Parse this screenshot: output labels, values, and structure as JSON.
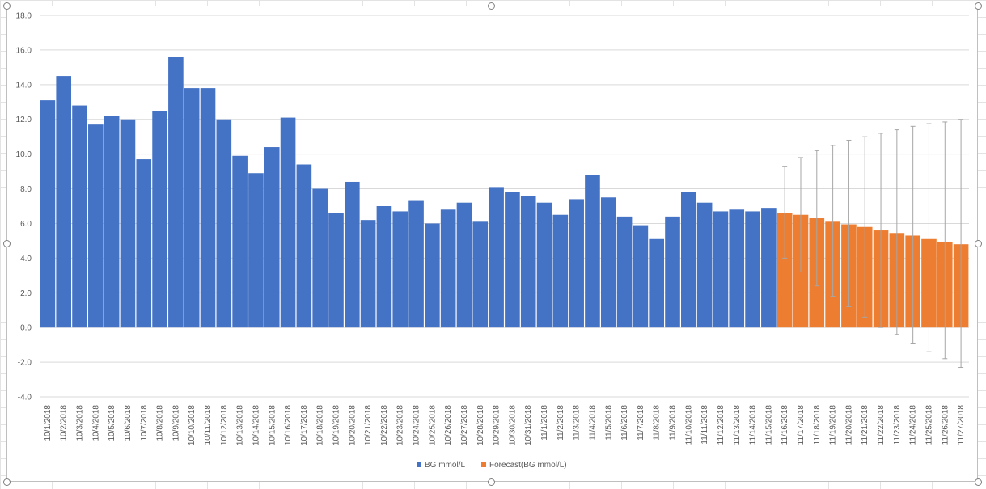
{
  "chart_data": {
    "type": "bar",
    "title": "",
    "xlabel": "",
    "ylabel": "",
    "ylim": [
      -4,
      18
    ],
    "ytick_step": 2,
    "ytick_labels": [
      "-4.0",
      "-2.0",
      "0.0",
      "2.0",
      "4.0",
      "6.0",
      "8.0",
      "10.0",
      "12.0",
      "14.0",
      "16.0",
      "18.0"
    ],
    "grid": true,
    "legend_position": "bottom",
    "categories": [
      "10/1/2018",
      "10/2/2018",
      "10/3/2018",
      "10/4/2018",
      "10/5/2018",
      "10/6/2018",
      "10/7/2018",
      "10/8/2018",
      "10/9/2018",
      "10/10/2018",
      "10/11/2018",
      "10/12/2018",
      "10/13/2018",
      "10/14/2018",
      "10/15/2018",
      "10/16/2018",
      "10/17/2018",
      "10/18/2018",
      "10/19/2018",
      "10/20/2018",
      "10/21/2018",
      "10/22/2018",
      "10/23/2018",
      "10/24/2018",
      "10/25/2018",
      "10/26/2018",
      "10/27/2018",
      "10/28/2018",
      "10/29/2018",
      "10/30/2018",
      "10/31/2018",
      "11/1/2018",
      "11/2/2018",
      "11/3/2018",
      "11/4/2018",
      "11/5/2018",
      "11/6/2018",
      "11/7/2018",
      "11/8/2018",
      "11/9/2018",
      "11/10/2018",
      "11/11/2018",
      "11/12/2018",
      "11/13/2018",
      "11/14/2018",
      "11/15/2018",
      "11/16/2018",
      "11/17/2018",
      "11/18/2018",
      "11/19/2018",
      "11/20/2018",
      "11/21/2018",
      "11/22/2018",
      "11/23/2018",
      "11/24/2018",
      "11/25/2018",
      "11/26/2018",
      "11/27/2018"
    ],
    "series": [
      {
        "name": "BG mmol/L",
        "color": "#4472c4",
        "values": [
          13.1,
          14.5,
          12.8,
          11.7,
          12.2,
          12.0,
          9.7,
          12.5,
          15.6,
          13.8,
          13.8,
          12.0,
          9.9,
          8.9,
          10.4,
          12.1,
          9.4,
          8.0,
          6.6,
          8.4,
          6.2,
          7.0,
          6.7,
          7.3,
          6.0,
          6.8,
          7.2,
          6.1,
          8.1,
          7.8,
          7.6,
          7.2,
          6.5,
          7.4,
          8.8,
          7.5,
          6.4,
          5.9,
          5.1,
          6.4,
          7.8,
          7.2,
          6.7,
          6.8,
          6.7,
          6.9,
          null,
          null,
          null,
          null,
          null,
          null,
          null,
          null,
          null,
          null,
          null,
          null
        ]
      },
      {
        "name": "Forecast(BG mmol/L)",
        "color": "#ed7d31",
        "values": [
          null,
          null,
          null,
          null,
          null,
          null,
          null,
          null,
          null,
          null,
          null,
          null,
          null,
          null,
          null,
          null,
          null,
          null,
          null,
          null,
          null,
          null,
          null,
          null,
          null,
          null,
          null,
          null,
          null,
          null,
          null,
          null,
          null,
          null,
          null,
          null,
          null,
          null,
          null,
          null,
          null,
          null,
          null,
          null,
          null,
          null,
          6.6,
          6.5,
          6.3,
          6.1,
          5.95,
          5.8,
          5.6,
          5.45,
          5.3,
          5.1,
          4.95,
          4.8
        ],
        "error_upper": [
          null,
          null,
          null,
          null,
          null,
          null,
          null,
          null,
          null,
          null,
          null,
          null,
          null,
          null,
          null,
          null,
          null,
          null,
          null,
          null,
          null,
          null,
          null,
          null,
          null,
          null,
          null,
          null,
          null,
          null,
          null,
          null,
          null,
          null,
          null,
          null,
          null,
          null,
          null,
          null,
          null,
          null,
          null,
          null,
          null,
          null,
          9.3,
          9.8,
          10.2,
          10.5,
          10.8,
          11.0,
          11.2,
          11.4,
          11.6,
          11.75,
          11.85,
          12.0
        ],
        "error_lower": [
          null,
          null,
          null,
          null,
          null,
          null,
          null,
          null,
          null,
          null,
          null,
          null,
          null,
          null,
          null,
          null,
          null,
          null,
          null,
          null,
          null,
          null,
          null,
          null,
          null,
          null,
          null,
          null,
          null,
          null,
          null,
          null,
          null,
          null,
          null,
          null,
          null,
          null,
          null,
          null,
          null,
          null,
          null,
          null,
          null,
          null,
          4.0,
          3.2,
          2.4,
          1.8,
          1.2,
          0.6,
          0.0,
          -0.4,
          -0.9,
          -1.4,
          -1.8,
          -2.3
        ]
      }
    ],
    "error_bar_color": "#a6a6a6",
    "grid_color": "#d9d9d9"
  }
}
